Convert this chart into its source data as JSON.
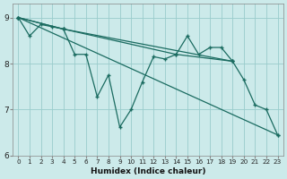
{
  "xlabel": "Humidex (Indice chaleur)",
  "bg_color": "#cceaea",
  "line_color": "#1a6b60",
  "grid_color": "#99cccc",
  "xlim": [
    -0.5,
    23.5
  ],
  "ylim": [
    6.0,
    9.3
  ],
  "yticks": [
    6,
    7,
    8,
    9
  ],
  "xticks": [
    0,
    1,
    2,
    3,
    4,
    5,
    6,
    7,
    8,
    9,
    10,
    11,
    12,
    13,
    14,
    15,
    16,
    17,
    18,
    19,
    20,
    21,
    22,
    23
  ],
  "line_zigzag": [
    [
      0,
      9.0
    ],
    [
      1,
      8.6
    ],
    [
      2,
      8.85
    ],
    [
      3,
      8.8
    ],
    [
      4,
      8.75
    ],
    [
      5,
      8.2
    ],
    [
      6,
      8.2
    ],
    [
      7,
      7.28
    ],
    [
      8,
      7.75
    ],
    [
      9,
      6.62
    ],
    [
      10,
      7.0
    ],
    [
      11,
      7.6
    ],
    [
      12,
      8.15
    ],
    [
      13,
      8.1
    ],
    [
      14,
      8.2
    ],
    [
      15,
      8.6
    ],
    [
      16,
      8.2
    ],
    [
      17,
      8.35
    ],
    [
      18,
      8.35
    ],
    [
      19,
      8.05
    ],
    [
      20,
      7.65
    ],
    [
      21,
      7.1
    ],
    [
      22,
      7.0
    ],
    [
      23,
      6.45
    ]
  ],
  "line_long_diag": [
    [
      0,
      9.0
    ],
    [
      23,
      6.45
    ]
  ],
  "line_mid_diag": [
    [
      0,
      9.0
    ],
    [
      4,
      8.75
    ],
    [
      19,
      8.05
    ]
  ],
  "line_upper_diag": [
    [
      0,
      9.0
    ],
    [
      4,
      8.75
    ],
    [
      14,
      8.2
    ],
    [
      19,
      8.05
    ]
  ]
}
